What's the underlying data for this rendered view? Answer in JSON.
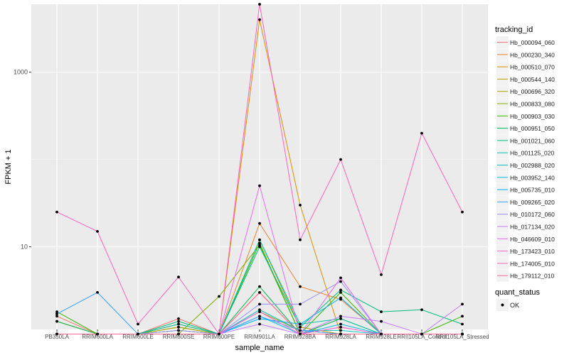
{
  "chart_data": {
    "type": "line",
    "xlabel": "sample_name",
    "ylabel": "FPKM + 1",
    "y_scale": "log10",
    "ylim": [
      1.13,
      6000
    ],
    "yticks": [
      10,
      1000
    ],
    "ytick_labels": [
      "10",
      "1000"
    ],
    "categories": [
      "PB350LA",
      "RRIM600LA",
      "RRIM600LE",
      "RRIM600SE",
      "RRIM600PE",
      "RRIM901LA",
      "RRIM928BA",
      "RRIM928LA",
      "RRIM928LE",
      "RRII105LA_Control",
      "RRII105LA_Stressed"
    ],
    "legend_title": "tracking_id",
    "legend_position": "right",
    "quant_legend_title": "quant_status",
    "quant_legend_label": "OK",
    "grid": true,
    "series": [
      {
        "name": "Hb_000094_060",
        "color": "#F8766D",
        "values": [
          1.6,
          1,
          1,
          1.5,
          1,
          3,
          1,
          1.2,
          1,
          1,
          1
        ]
      },
      {
        "name": "Hb_000230_340",
        "color": "#EA8331",
        "values": [
          1.4,
          1,
          1,
          1.3,
          1,
          18.5,
          3.5,
          2.5,
          1,
          1,
          1
        ]
      },
      {
        "name": "Hb_000510_070",
        "color": "#D89000",
        "values": [
          1,
          1,
          1,
          1.2,
          1,
          4000,
          30,
          1,
          1,
          1,
          1
        ]
      },
      {
        "name": "Hb_000544_140",
        "color": "#C09B00",
        "values": [
          1,
          1,
          1,
          1.1,
          1,
          12,
          1.2,
          1,
          1,
          1,
          1
        ]
      },
      {
        "name": "Hb_000696_320",
        "color": "#A3A500",
        "values": [
          1,
          1,
          1,
          1.2,
          1,
          1.8,
          1.1,
          1,
          1,
          1,
          1
        ]
      },
      {
        "name": "Hb_000833_080",
        "color": "#7CAE00",
        "values": [
          1,
          1,
          1,
          1,
          2.7,
          10.5,
          1,
          1,
          1,
          1,
          1
        ]
      },
      {
        "name": "Hb_000903_030",
        "color": "#39B600",
        "values": [
          1.8,
          1,
          1,
          1.1,
          1,
          11,
          1,
          3,
          1,
          1,
          1.6
        ]
      },
      {
        "name": "Hb_000951_050",
        "color": "#00BB4E",
        "values": [
          1.4,
          1,
          1,
          1,
          1,
          3.5,
          1,
          1.5,
          1,
          1,
          1
        ]
      },
      {
        "name": "Hb_001021_060",
        "color": "#00BF7D",
        "values": [
          1,
          1,
          1,
          1.4,
          1,
          10,
          1.2,
          3.2,
          1.8,
          1.9,
          1.3
        ]
      },
      {
        "name": "Hb_001125_020",
        "color": "#00C1A3",
        "values": [
          1,
          1,
          1,
          1.3,
          1,
          12,
          1.3,
          1.5,
          1,
          1,
          1
        ]
      },
      {
        "name": "Hb_002988_020",
        "color": "#00BFC4",
        "values": [
          1,
          1,
          1,
          1,
          1,
          1.9,
          1.1,
          1.1,
          1,
          1,
          1
        ]
      },
      {
        "name": "Hb_003952_140",
        "color": "#00BAE0",
        "values": [
          1,
          1,
          1,
          1,
          1,
          1.6,
          1,
          1.3,
          1,
          1,
          1
        ]
      },
      {
        "name": "Hb_005735_010",
        "color": "#00B0F6",
        "values": [
          1,
          1,
          1,
          1,
          1,
          1.5,
          1.3,
          2.6,
          1,
          1,
          1
        ]
      },
      {
        "name": "Hb_009265_020",
        "color": "#35A2FF",
        "values": [
          1.7,
          3,
          1,
          1,
          1,
          1.6,
          1.1,
          1,
          1,
          1,
          1
        ]
      },
      {
        "name": "Hb_010172_060",
        "color": "#9590FF",
        "values": [
          1,
          1,
          1,
          1.1,
          1,
          2.2,
          2.2,
          4,
          1,
          1,
          1
        ]
      },
      {
        "name": "Hb_017134_020",
        "color": "#C77CFF",
        "values": [
          1,
          1,
          1,
          1,
          1,
          1.3,
          1,
          1.6,
          1.4,
          1,
          2.2
        ]
      },
      {
        "name": "Hb_046609_010",
        "color": "#E76BF3",
        "values": [
          1,
          1,
          1,
          1,
          1,
          50,
          1,
          4.4,
          1,
          1,
          1
        ]
      },
      {
        "name": "Hb_173423_010",
        "color": "#FA62DB",
        "values": [
          1,
          1,
          1,
          1,
          1,
          1.8,
          1,
          1.2,
          1,
          1,
          1
        ]
      },
      {
        "name": "Hb_174005_010",
        "color": "#FF62BC",
        "values": [
          25,
          15,
          1.3,
          4.5,
          1,
          6000,
          12,
          100,
          4.8,
          200,
          25
        ]
      },
      {
        "name": "Hb_179112_010",
        "color": "#FF6C91",
        "values": [
          1,
          1,
          1,
          1,
          1,
          3,
          1,
          1,
          1,
          1,
          1
        ]
      }
    ]
  }
}
